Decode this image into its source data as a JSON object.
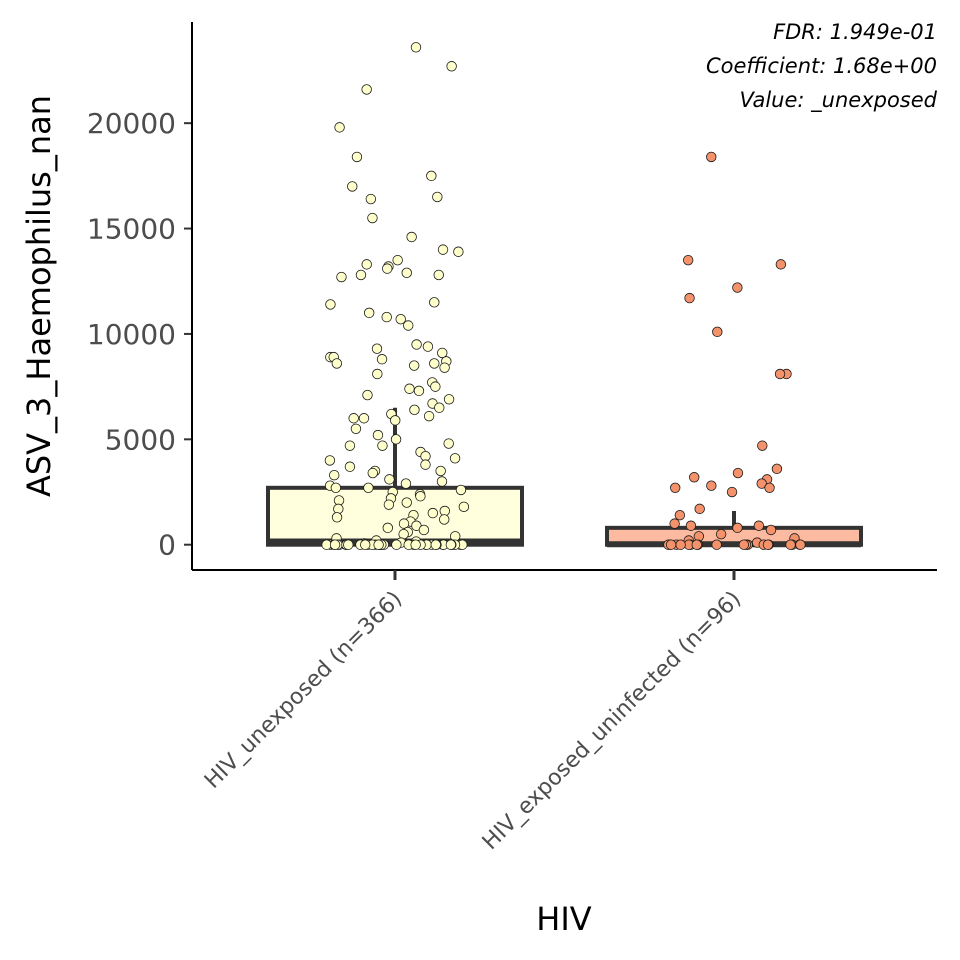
{
  "chart_data": {
    "type": "box",
    "xlabel": "HIV",
    "ylabel": "ASV_3_Haemophilus_nan",
    "ylim": [
      -1200,
      24800
    ],
    "yticks": [
      0,
      5000,
      10000,
      15000,
      20000
    ],
    "ytick_labels": [
      "0",
      "5000",
      "10000",
      "15000",
      "20000"
    ],
    "annotations": [
      "FDR: 1.949e-01",
      "Coefficient: 1.68e+00",
      "Value: _unexposed"
    ],
    "groups": [
      {
        "label": "HIV_unexposed (n=366)",
        "fill": "#ffffdd",
        "point_fill": "#ffffcc",
        "box": {
          "q1": 0,
          "median": 150,
          "q3": 2700,
          "whisker_low": 0,
          "whisker_high": 6500
        },
        "points": [
          23600,
          22700,
          21600,
          19800,
          18400,
          17500,
          17000,
          16400,
          16500,
          15500,
          14600,
          14000,
          13900,
          13500,
          13300,
          13200,
          13100,
          12900,
          12800,
          12800,
          12700,
          11500,
          11400,
          11000,
          10800,
          10700,
          10400,
          9500,
          9400,
          9300,
          9100,
          8900,
          8900,
          8800,
          8700,
          8600,
          8600,
          8500,
          8400,
          8100,
          7700,
          7500,
          7400,
          7300,
          7100,
          6900,
          6700,
          6500,
          6400,
          6200,
          6100,
          6000,
          6000,
          5900,
          5500,
          5200,
          5000,
          4800,
          4700,
          4700,
          4400,
          4200,
          4100,
          4000,
          3800,
          3700,
          3500,
          3500,
          3400,
          3300,
          3100,
          3000,
          2900,
          2800,
          2700,
          2700,
          2600,
          2500,
          2400,
          2300,
          2200,
          2100,
          2000,
          1900,
          1800,
          1700,
          1600,
          1500,
          1400,
          1300,
          1200,
          1100,
          1000,
          900,
          800,
          700,
          600,
          500,
          400,
          300,
          200,
          150,
          100,
          60,
          30,
          0,
          0,
          0,
          0,
          0,
          0,
          0,
          0,
          0,
          0,
          0,
          0,
          0,
          0,
          0,
          0,
          0,
          0,
          0,
          0,
          0,
          0,
          0,
          0,
          0,
          0,
          0,
          0,
          0,
          0,
          0,
          0,
          0,
          0,
          0,
          0,
          0,
          0
        ]
      },
      {
        "label": "HIV_exposed_uninfected (n=96)",
        "fill": "#fcbba1",
        "point_fill": "#f4926b",
        "box": {
          "q1": 0,
          "median": 20,
          "q3": 800,
          "whisker_low": 0,
          "whisker_high": 1600
        },
        "points": [
          18400,
          13500,
          13300,
          12200,
          11700,
          10100,
          8100,
          8100,
          4700,
          3600,
          3400,
          3200,
          3100,
          2900,
          2800,
          2700,
          2700,
          2500,
          1700,
          1400,
          1000,
          900,
          900,
          800,
          700,
          500,
          400,
          300,
          200,
          100,
          0,
          0,
          0,
          0,
          0,
          0,
          0,
          0,
          0,
          0,
          0,
          0,
          0,
          0,
          0,
          0,
          0,
          0,
          0,
          0
        ]
      }
    ]
  }
}
